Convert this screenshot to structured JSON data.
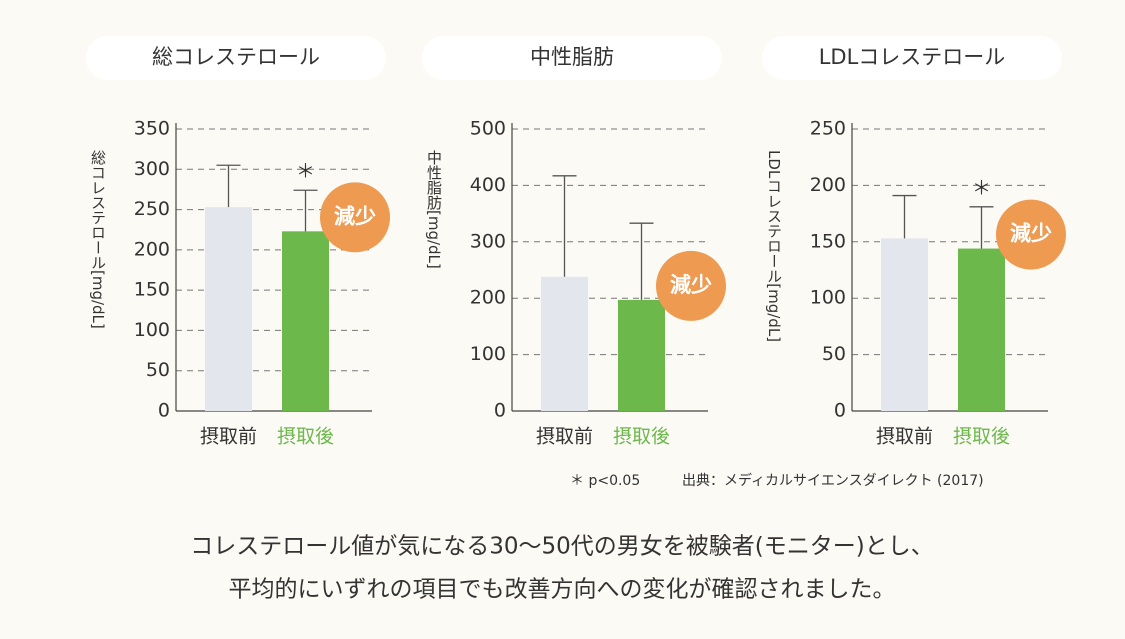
{
  "chart_data": [
    {
      "type": "bar",
      "title": "総コレステロール",
      "y_label": "総コレステロール[mg/dL]",
      "categories": [
        "摂取前",
        "摂取後"
      ],
      "values": [
        253,
        223
      ],
      "errors": [
        52,
        51
      ],
      "colors": [
        "#e4e6ee",
        "#6cb84b"
      ],
      "label_colors": [
        "#333333",
        "#6cb84b"
      ],
      "ylim": [
        0,
        350
      ],
      "yticks": [
        0,
        50,
        100,
        150,
        200,
        250,
        300,
        350
      ],
      "grid": true,
      "significance": "＊",
      "badge": "減少",
      "badge_color": "#ee9a50"
    },
    {
      "type": "bar",
      "title": "中性脂肪",
      "y_label": "中性脂肪[mg/dL]",
      "categories": [
        "摂取前",
        "摂取後"
      ],
      "values": [
        238,
        197
      ],
      "errors": [
        179,
        136
      ],
      "colors": [
        "#e4e6ee",
        "#6cb84b"
      ],
      "label_colors": [
        "#333333",
        "#6cb84b"
      ],
      "ylim": [
        0,
        500
      ],
      "yticks": [
        0,
        100,
        200,
        300,
        400,
        500
      ],
      "grid": true,
      "badge": "減少",
      "badge_color": "#ee9a50"
    },
    {
      "type": "bar",
      "title": "LDLコレステロール",
      "y_label": "LDLコレステロール[mg/dL]",
      "categories": [
        "摂取前",
        "摂取後"
      ],
      "values": [
        153,
        144
      ],
      "errors": [
        38,
        37
      ],
      "colors": [
        "#e4e6ee",
        "#6cb84b"
      ],
      "label_colors": [
        "#333333",
        "#6cb84b"
      ],
      "ylim": [
        0,
        250
      ],
      "yticks": [
        0,
        50,
        100,
        150,
        200,
        250
      ],
      "grid": true,
      "significance": "＊",
      "badge": "減少",
      "badge_color": "#ee9a50"
    }
  ],
  "footnote": "＊ p<0.05",
  "source": "出典：メディカルサイエンスダイレクト (2017)",
  "caption": [
    "コレステロール値が気になる30〜50代の男女を被験者(モニター)とし、",
    "平均的にいずれの項目でも改善方向への変化が確認されました。"
  ]
}
